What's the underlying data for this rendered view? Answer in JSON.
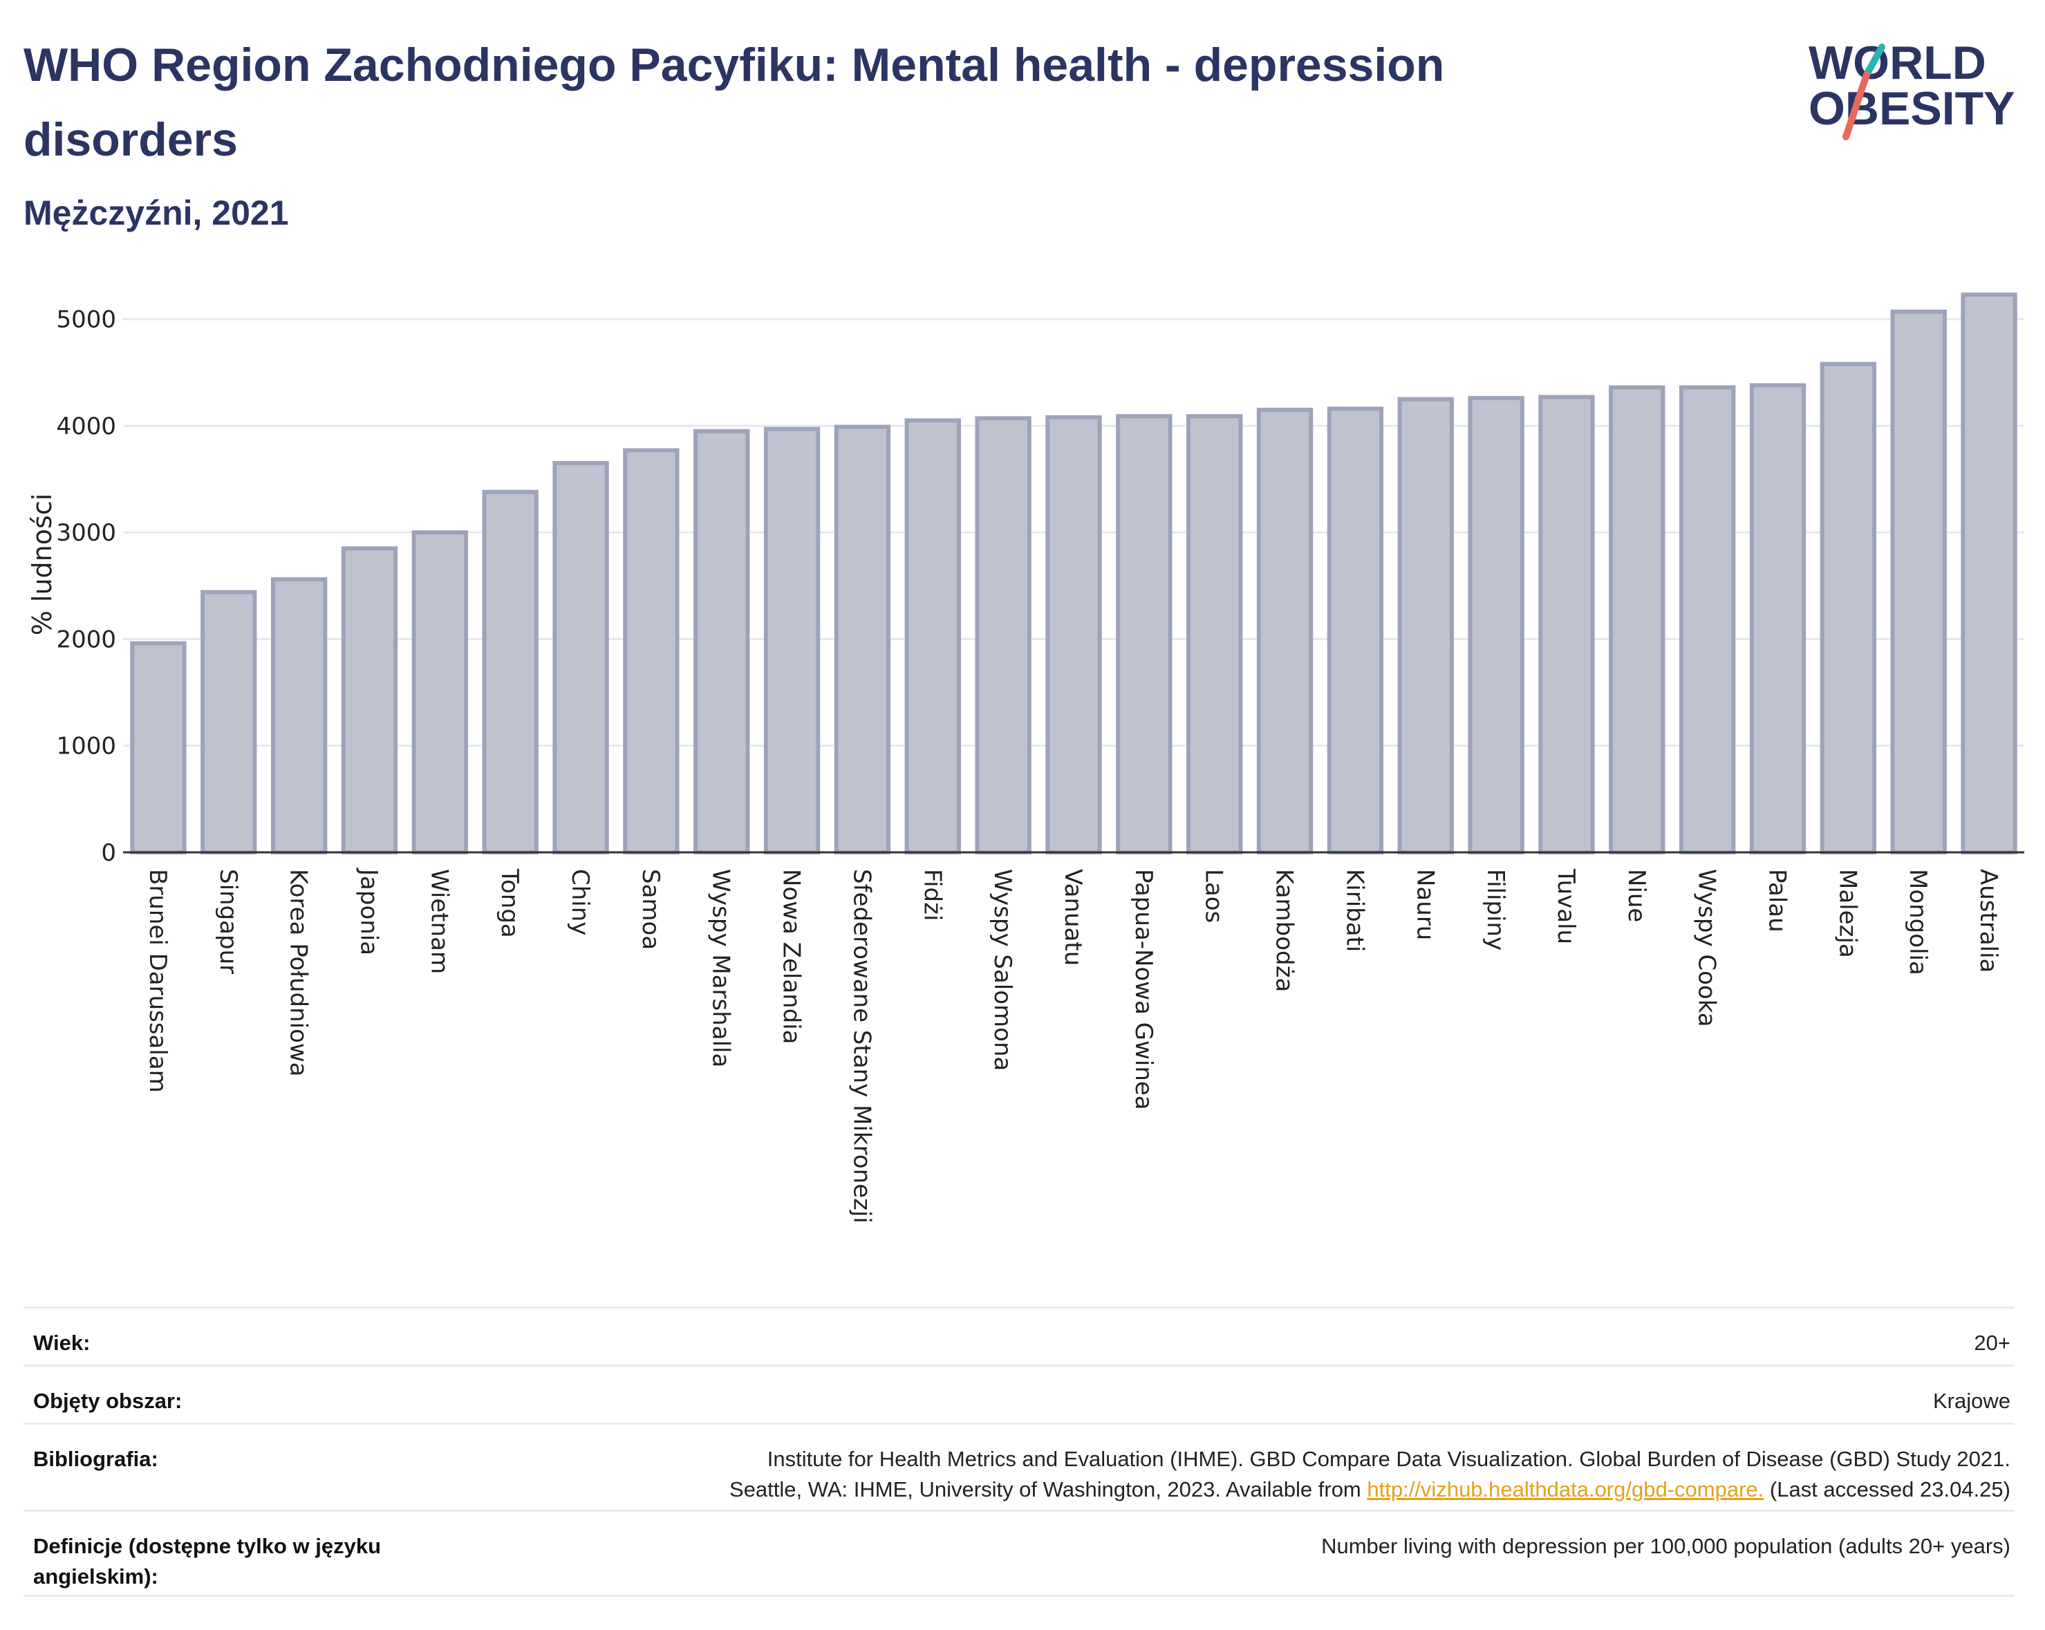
{
  "header": {
    "title": "WHO Region Zachodniego Pacyfiku: Mental health - depression disorders",
    "subtitle": "Mężczyźni, 2021",
    "logo_line1": "WORLD",
    "logo_line2": "OBESITY"
  },
  "colors": {
    "bar_fill": "#bfc2cf",
    "bar_stroke": "#9ea3bb",
    "title": "#2b3462",
    "logo_teal": "#2ab3b0",
    "logo_coral": "#e76a5a"
  },
  "chart_data": {
    "type": "bar",
    "categories": [
      "Brunei Darussalam",
      "Singapur",
      "Korea Południowa",
      "Japonia",
      "Wietnam",
      "Tonga",
      "Chiny",
      "Samoa",
      "Wyspy Marshalla",
      "Nowa Zelandia",
      "Sfederowane Stany Mikronezji",
      "Fidżi",
      "Wyspy Salomona",
      "Vanuatu",
      "Papua-Nowa Gwinea",
      "Laos",
      "Kambodża",
      "Kiribati",
      "Nauru",
      "Filipiny",
      "Tuvalu",
      "Niue",
      "Wyspy Cooka",
      "Palau",
      "Malezja",
      "Mongolia",
      "Australia"
    ],
    "values": [
      1960,
      2440,
      2560,
      2850,
      3000,
      3380,
      3650,
      3770,
      3950,
      3970,
      3990,
      4050,
      4070,
      4080,
      4090,
      4090,
      4150,
      4160,
      4250,
      4260,
      4270,
      4360,
      4360,
      4380,
      4580,
      5070,
      5230
    ],
    "ylabel": "% ludności",
    "ylim": [
      0,
      5400
    ],
    "yticks": [
      0,
      1000,
      2000,
      3000,
      4000,
      5000
    ],
    "grid": true
  },
  "meta": {
    "age_label": "Wiek:",
    "age_value": "20+",
    "area_label": "Objęty obszar:",
    "area_value": "Krajowe",
    "bib_label": "Bibliografia:",
    "bib_line1": "Institute for Health Metrics and Evaluation (IHME). GBD Compare Data Visualization. Global Burden of Disease (GBD) Study 2021.",
    "bib_line2_pre": "Seattle, WA: IHME, University of Washington, 2023. Available from",
    "bib_link": "http://vizhub.healthdata.org/gbd-compare.",
    "bib_line2_post": "(Last accessed 23.04.25)",
    "def_label": "Definicje (dostępne tylko w języku angielskim):",
    "def_value": "Number living with depression per 100,000 population (adults 20+ years)"
  }
}
